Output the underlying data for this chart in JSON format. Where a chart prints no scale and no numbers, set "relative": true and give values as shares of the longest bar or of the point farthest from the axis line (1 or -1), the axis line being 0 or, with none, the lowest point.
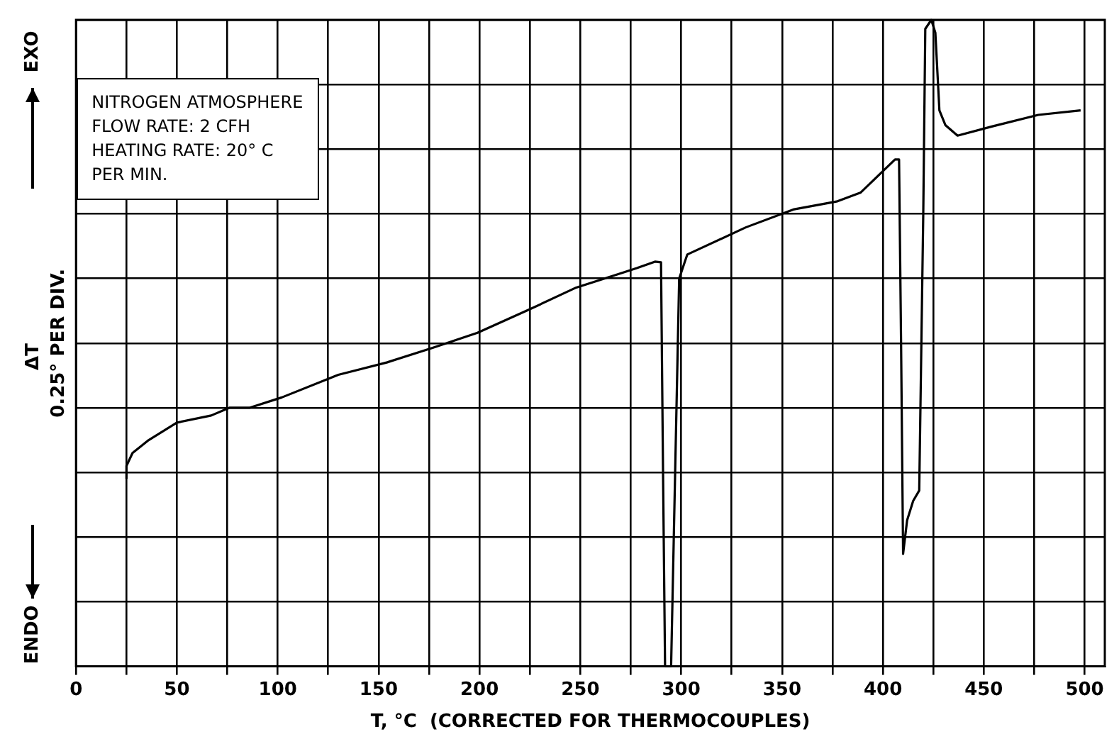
{
  "chart_data": {
    "type": "line",
    "relative": true,
    "xlabel": "T, °C  (CORRECTED FOR THERMOCOUPLES)",
    "ylabel": "0.25° PER DIV.",
    "annotations": [
      "NITROGEN ATMOSPHERE\nFLOW RATE: 2 CFH\nHEATING RATE: 20° C\nPER MIN.",
      "EXO",
      "ΔT",
      "ENDO"
    ],
    "xlim": [
      0,
      510
    ],
    "xticks": [
      0,
      {
        "value": 25,
        "label": null
      },
      50,
      {
        "value": 75,
        "label": null
      },
      100,
      {
        "value": 125,
        "label": null
      },
      150,
      {
        "value": 175,
        "label": null
      },
      200,
      {
        "value": 225,
        "label": null
      },
      250,
      {
        "value": 275,
        "label": null
      },
      300,
      {
        "value": 325,
        "label": null
      },
      350,
      {
        "value": 375,
        "label": null
      },
      400,
      {
        "value": 425,
        "label": null
      },
      450,
      {
        "value": 475,
        "label": null
      },
      500
    ],
    "grid": true,
    "legend": false,
    "marker": "none",
    "line_style": "solid",
    "series": [
      {
        "color": "#000000",
        "x": [
          25,
          25,
          28,
          36,
          50,
          67,
          76,
          86,
          102,
          130,
          154,
          177,
          199,
          224,
          248,
          271,
          278,
          287,
          290,
          291,
          292,
          295,
          297,
          299,
          303,
          332,
          356,
          377,
          389,
          406,
          408,
          409,
          410,
          412,
          415,
          418,
          420,
          421,
          424,
          426,
          428,
          431,
          437,
          454,
          477,
          498
        ],
        "values": [
          0.29,
          0.31,
          0.33,
          0.35,
          0.377,
          0.388,
          0.4,
          0.4,
          0.416,
          0.451,
          0.47,
          0.493,
          0.516,
          0.551,
          0.586,
          0.609,
          0.616,
          0.626,
          0.625,
          0.3,
          0.0,
          0.0,
          0.3,
          0.6,
          0.637,
          0.679,
          0.707,
          0.719,
          0.733,
          0.784,
          0.784,
          0.5,
          0.174,
          0.226,
          0.256,
          0.272,
          0.7,
          0.986,
          1.0,
          0.98,
          0.86,
          0.837,
          0.821,
          0.835,
          0.853,
          0.86
        ]
      }
    ]
  }
}
